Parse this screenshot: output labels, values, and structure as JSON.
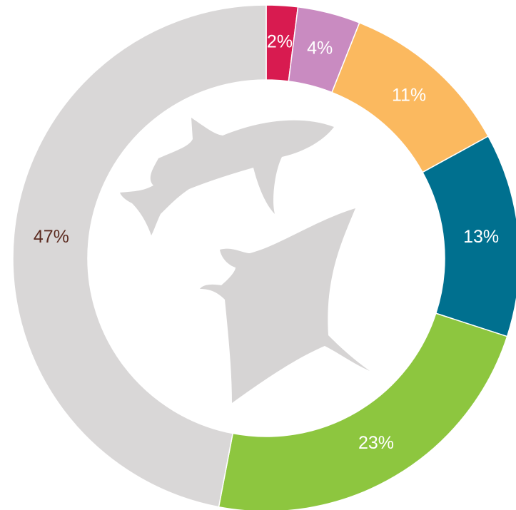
{
  "chart_data": {
    "type": "donut",
    "values": [
      2,
      4,
      11,
      13,
      23,
      47
    ],
    "value_labels": [
      "2%",
      "4%",
      "11%",
      "13%",
      "23%",
      "47%"
    ],
    "colors": [
      "#d81b50",
      "#c98bc1",
      "#fbb95f",
      "#00708f",
      "#8dc63f",
      "#d9d7d7"
    ],
    "label_colors": [
      "#ffffff",
      "#ffffff",
      "#ffffff",
      "#ffffff",
      "#ffffff",
      "#5b2a1f"
    ]
  }
}
